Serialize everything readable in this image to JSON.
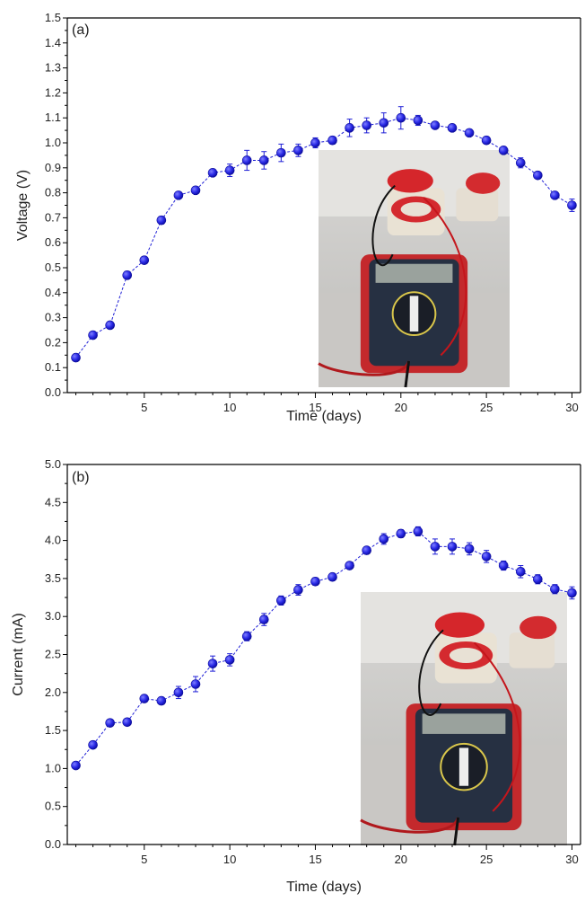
{
  "figure": {
    "colors": {
      "series": "#1f1fd6",
      "marker_fill": "#2a2ae6",
      "marker_edge": "#0a0a9a",
      "axis": "#000000"
    },
    "panel_a_photo_icon": "multimeter-photo",
    "panel_b_photo_icon": "multimeter-photo"
  },
  "chart_data": [
    {
      "type": "line",
      "panel_label": "(a)",
      "xlabel": "Time (days)",
      "ylabel": "Voltage (V)",
      "xlim": [
        0.5,
        30.5
      ],
      "ylim": [
        0.0,
        1.5
      ],
      "xticks": [
        5,
        10,
        15,
        20,
        25,
        30
      ],
      "yticks": [
        0.0,
        0.1,
        0.2,
        0.3,
        0.4,
        0.5,
        0.6,
        0.7,
        0.8,
        0.9,
        1.0,
        1.1,
        1.2,
        1.3,
        1.4,
        1.5
      ],
      "ytick_labels": [
        "0.0",
        "0.1",
        "0.2",
        "0.3",
        "0.4",
        "0.5",
        "0.6",
        "0.7",
        "0.8",
        "0.9",
        "1.0",
        "1.1",
        "1.2",
        "1.3",
        "1.4",
        "1.5"
      ],
      "grid": false,
      "x": [
        1,
        2,
        3,
        4,
        5,
        6,
        7,
        8,
        9,
        10,
        11,
        12,
        13,
        14,
        15,
        16,
        17,
        18,
        19,
        20,
        21,
        22,
        23,
        24,
        25,
        26,
        27,
        28,
        29,
        30
      ],
      "values": [
        0.14,
        0.23,
        0.27,
        0.47,
        0.53,
        0.69,
        0.79,
        0.81,
        0.88,
        0.89,
        0.93,
        0.93,
        0.96,
        0.97,
        1.0,
        1.01,
        1.06,
        1.07,
        1.08,
        1.1,
        1.09,
        1.07,
        1.06,
        1.04,
        1.01,
        0.97,
        0.92,
        0.87,
        0.79,
        0.75
      ],
      "errors": [
        0.01,
        0.01,
        0.01,
        0.015,
        0.01,
        0.015,
        0.01,
        0.01,
        0.01,
        0.025,
        0.04,
        0.035,
        0.035,
        0.025,
        0.02,
        0.015,
        0.035,
        0.03,
        0.04,
        0.045,
        0.02,
        0.01,
        0.01,
        0.01,
        0.01,
        0.01,
        0.02,
        0.01,
        0.01,
        0.025
      ]
    },
    {
      "type": "line",
      "panel_label": "(b)",
      "xlabel": "Time (days)",
      "ylabel": "Current (mA)",
      "xlim": [
        0.5,
        30.5
      ],
      "ylim": [
        0.0,
        5.0
      ],
      "xticks": [
        5,
        10,
        15,
        20,
        25,
        30
      ],
      "yticks": [
        0.0,
        0.5,
        1.0,
        1.5,
        2.0,
        2.5,
        3.0,
        3.5,
        4.0,
        4.5,
        5.0
      ],
      "ytick_labels": [
        "0.0",
        "0.5",
        "1.0",
        "1.5",
        "2.0",
        "2.5",
        "3.0",
        "3.5",
        "4.0",
        "4.5",
        "5.0"
      ],
      "grid": false,
      "x": [
        1,
        2,
        3,
        4,
        5,
        6,
        7,
        8,
        9,
        10,
        11,
        12,
        13,
        14,
        15,
        16,
        17,
        18,
        19,
        20,
        21,
        22,
        23,
        24,
        25,
        26,
        27,
        28,
        29,
        30
      ],
      "values": [
        1.04,
        1.31,
        1.6,
        1.61,
        1.92,
        1.89,
        2.0,
        2.11,
        2.38,
        2.43,
        2.74,
        2.96,
        3.21,
        3.35,
        3.46,
        3.52,
        3.67,
        3.87,
        4.02,
        4.09,
        4.12,
        3.92,
        3.92,
        3.89,
        3.79,
        3.67,
        3.59,
        3.49,
        3.36,
        3.31
      ],
      "errors": [
        0.03,
        0.03,
        0.03,
        0.03,
        0.03,
        0.03,
        0.08,
        0.1,
        0.1,
        0.08,
        0.06,
        0.08,
        0.06,
        0.07,
        0.05,
        0.04,
        0.04,
        0.04,
        0.07,
        0.05,
        0.06,
        0.1,
        0.1,
        0.08,
        0.08,
        0.06,
        0.08,
        0.06,
        0.06,
        0.08
      ]
    }
  ]
}
